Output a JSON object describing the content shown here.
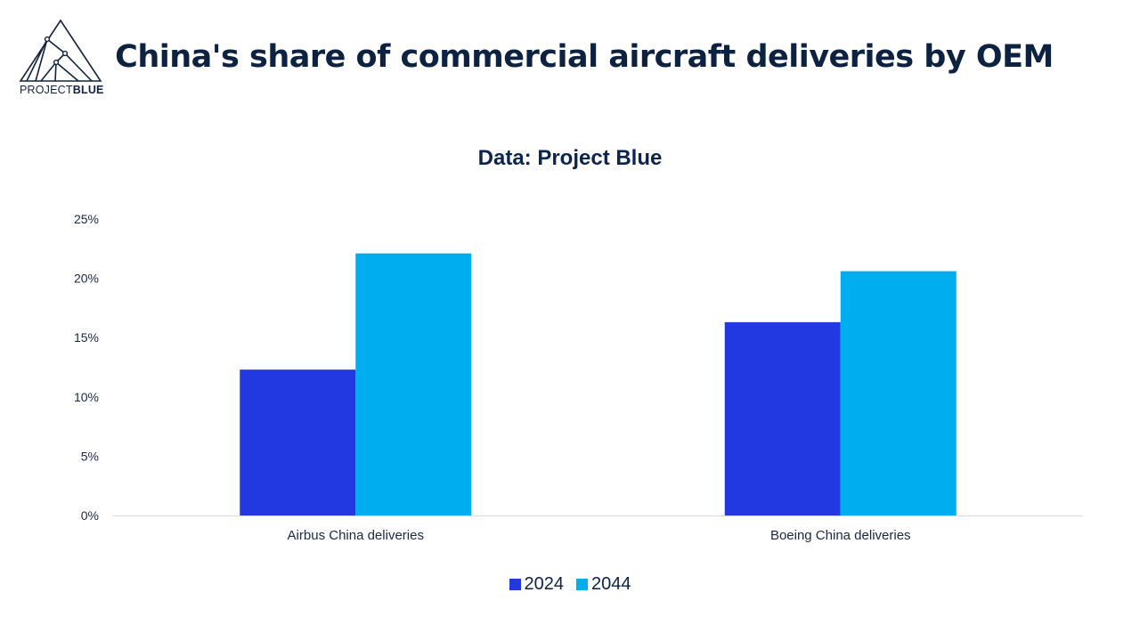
{
  "header": {
    "logo": {
      "icon": "mountain-network-icon",
      "text_light": "PROJECT",
      "text_bold": "BLUE"
    },
    "title": "China's share of commercial aircraft deliveries by OEM"
  },
  "colors": {
    "series_2024": "#2238e1",
    "series_2044": "#00adee",
    "axis": "#d9d9d9",
    "text": "#0c2240"
  },
  "chart_data": {
    "type": "bar",
    "title": "China's share of commercial aircraft deliveries by OEM",
    "subtitle": "Data: Project Blue",
    "categories": [
      "Airbus China deliveries",
      "Boeing China deliveries"
    ],
    "series": [
      {
        "name": "2024",
        "values": [
          12.3,
          16.3
        ]
      },
      {
        "name": "2044",
        "values": [
          22.1,
          20.6
        ]
      }
    ],
    "xlabel": "",
    "ylabel": "",
    "ylim": [
      0,
      25
    ],
    "yticks": [
      0,
      5,
      10,
      15,
      20,
      25
    ],
    "ytick_labels": [
      "0%",
      "5%",
      "10%",
      "15%",
      "20%",
      "25%"
    ],
    "grid": false,
    "legend": "bottom-center",
    "unit": "%"
  }
}
